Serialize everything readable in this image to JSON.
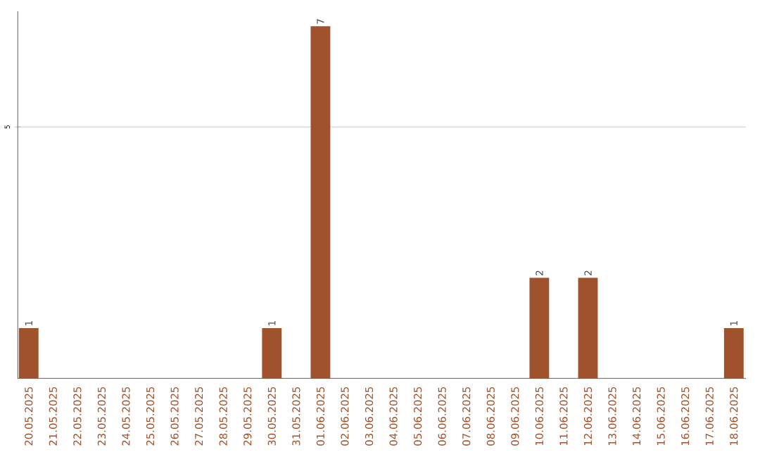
{
  "chart_data": {
    "type": "bar",
    "categories": [
      "20.05.2025",
      "21.05.2025",
      "22.05.2025",
      "23.05.2025",
      "24.05.2025",
      "25.05.2025",
      "26.05.2025",
      "27.05.2025",
      "28.05.2025",
      "29.05.2025",
      "30.05.2025",
      "31.05.2025",
      "01.06.2025",
      "02.06.2025",
      "03.06.2025",
      "04.06.2025",
      "05.06.2025",
      "06.06.2025",
      "07.06.2025",
      "08.06.2025",
      "09.06.2025",
      "10.06.2025",
      "11.06.2025",
      "12.06.2025",
      "13.06.2025",
      "14.06.2025",
      "15.06.2025",
      "16.06.2025",
      "17.06.2025",
      "18.06.2025"
    ],
    "values": [
      1,
      0,
      0,
      0,
      0,
      0,
      0,
      0,
      0,
      0,
      1,
      0,
      7,
      0,
      0,
      0,
      0,
      0,
      0,
      0,
      0,
      2,
      0,
      2,
      0,
      0,
      0,
      0,
      0,
      1
    ],
    "value_labels": [
      "1",
      null,
      null,
      null,
      null,
      null,
      null,
      null,
      null,
      null,
      "1",
      null,
      "7",
      null,
      null,
      null,
      null,
      null,
      null,
      null,
      null,
      "2",
      null,
      "2",
      null,
      null,
      null,
      null,
      null,
      "1"
    ],
    "color": "#a0522d",
    "ylim": [
      0,
      7.3
    ],
    "yticks": [
      5
    ],
    "grid": "y"
  }
}
